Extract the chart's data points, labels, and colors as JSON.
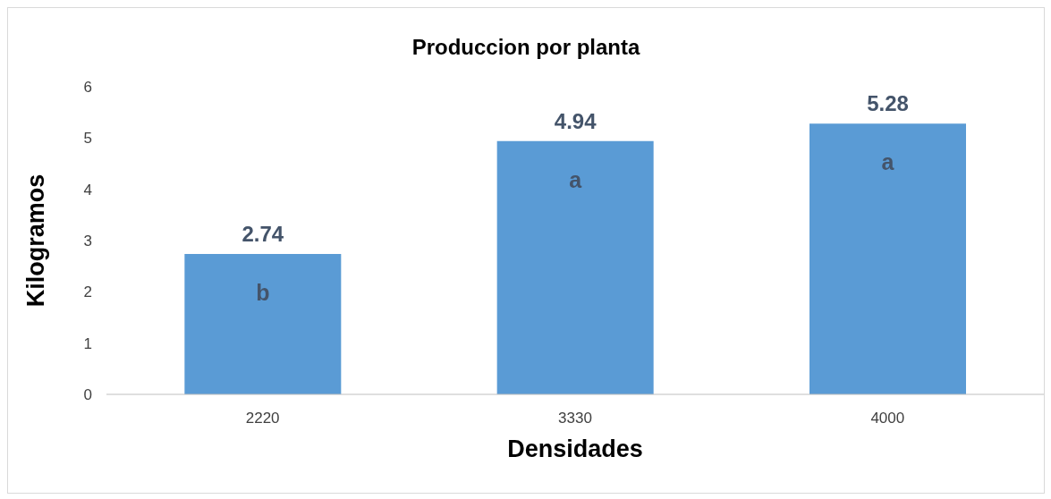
{
  "chart_data": {
    "type": "bar",
    "title": "Produccion por planta",
    "xlabel": "Densidades",
    "ylabel": "Kilogramos",
    "categories": [
      "2220",
      "3330",
      "4000"
    ],
    "values": [
      2.74,
      4.94,
      5.28
    ],
    "color": "#5a9bd5",
    "ylim": [
      0,
      6
    ],
    "yticks": [
      0,
      1,
      2,
      3,
      4,
      5,
      6
    ],
    "grid": false,
    "data_labels": true,
    "annotations": [
      "b",
      "a",
      "a"
    ]
  }
}
